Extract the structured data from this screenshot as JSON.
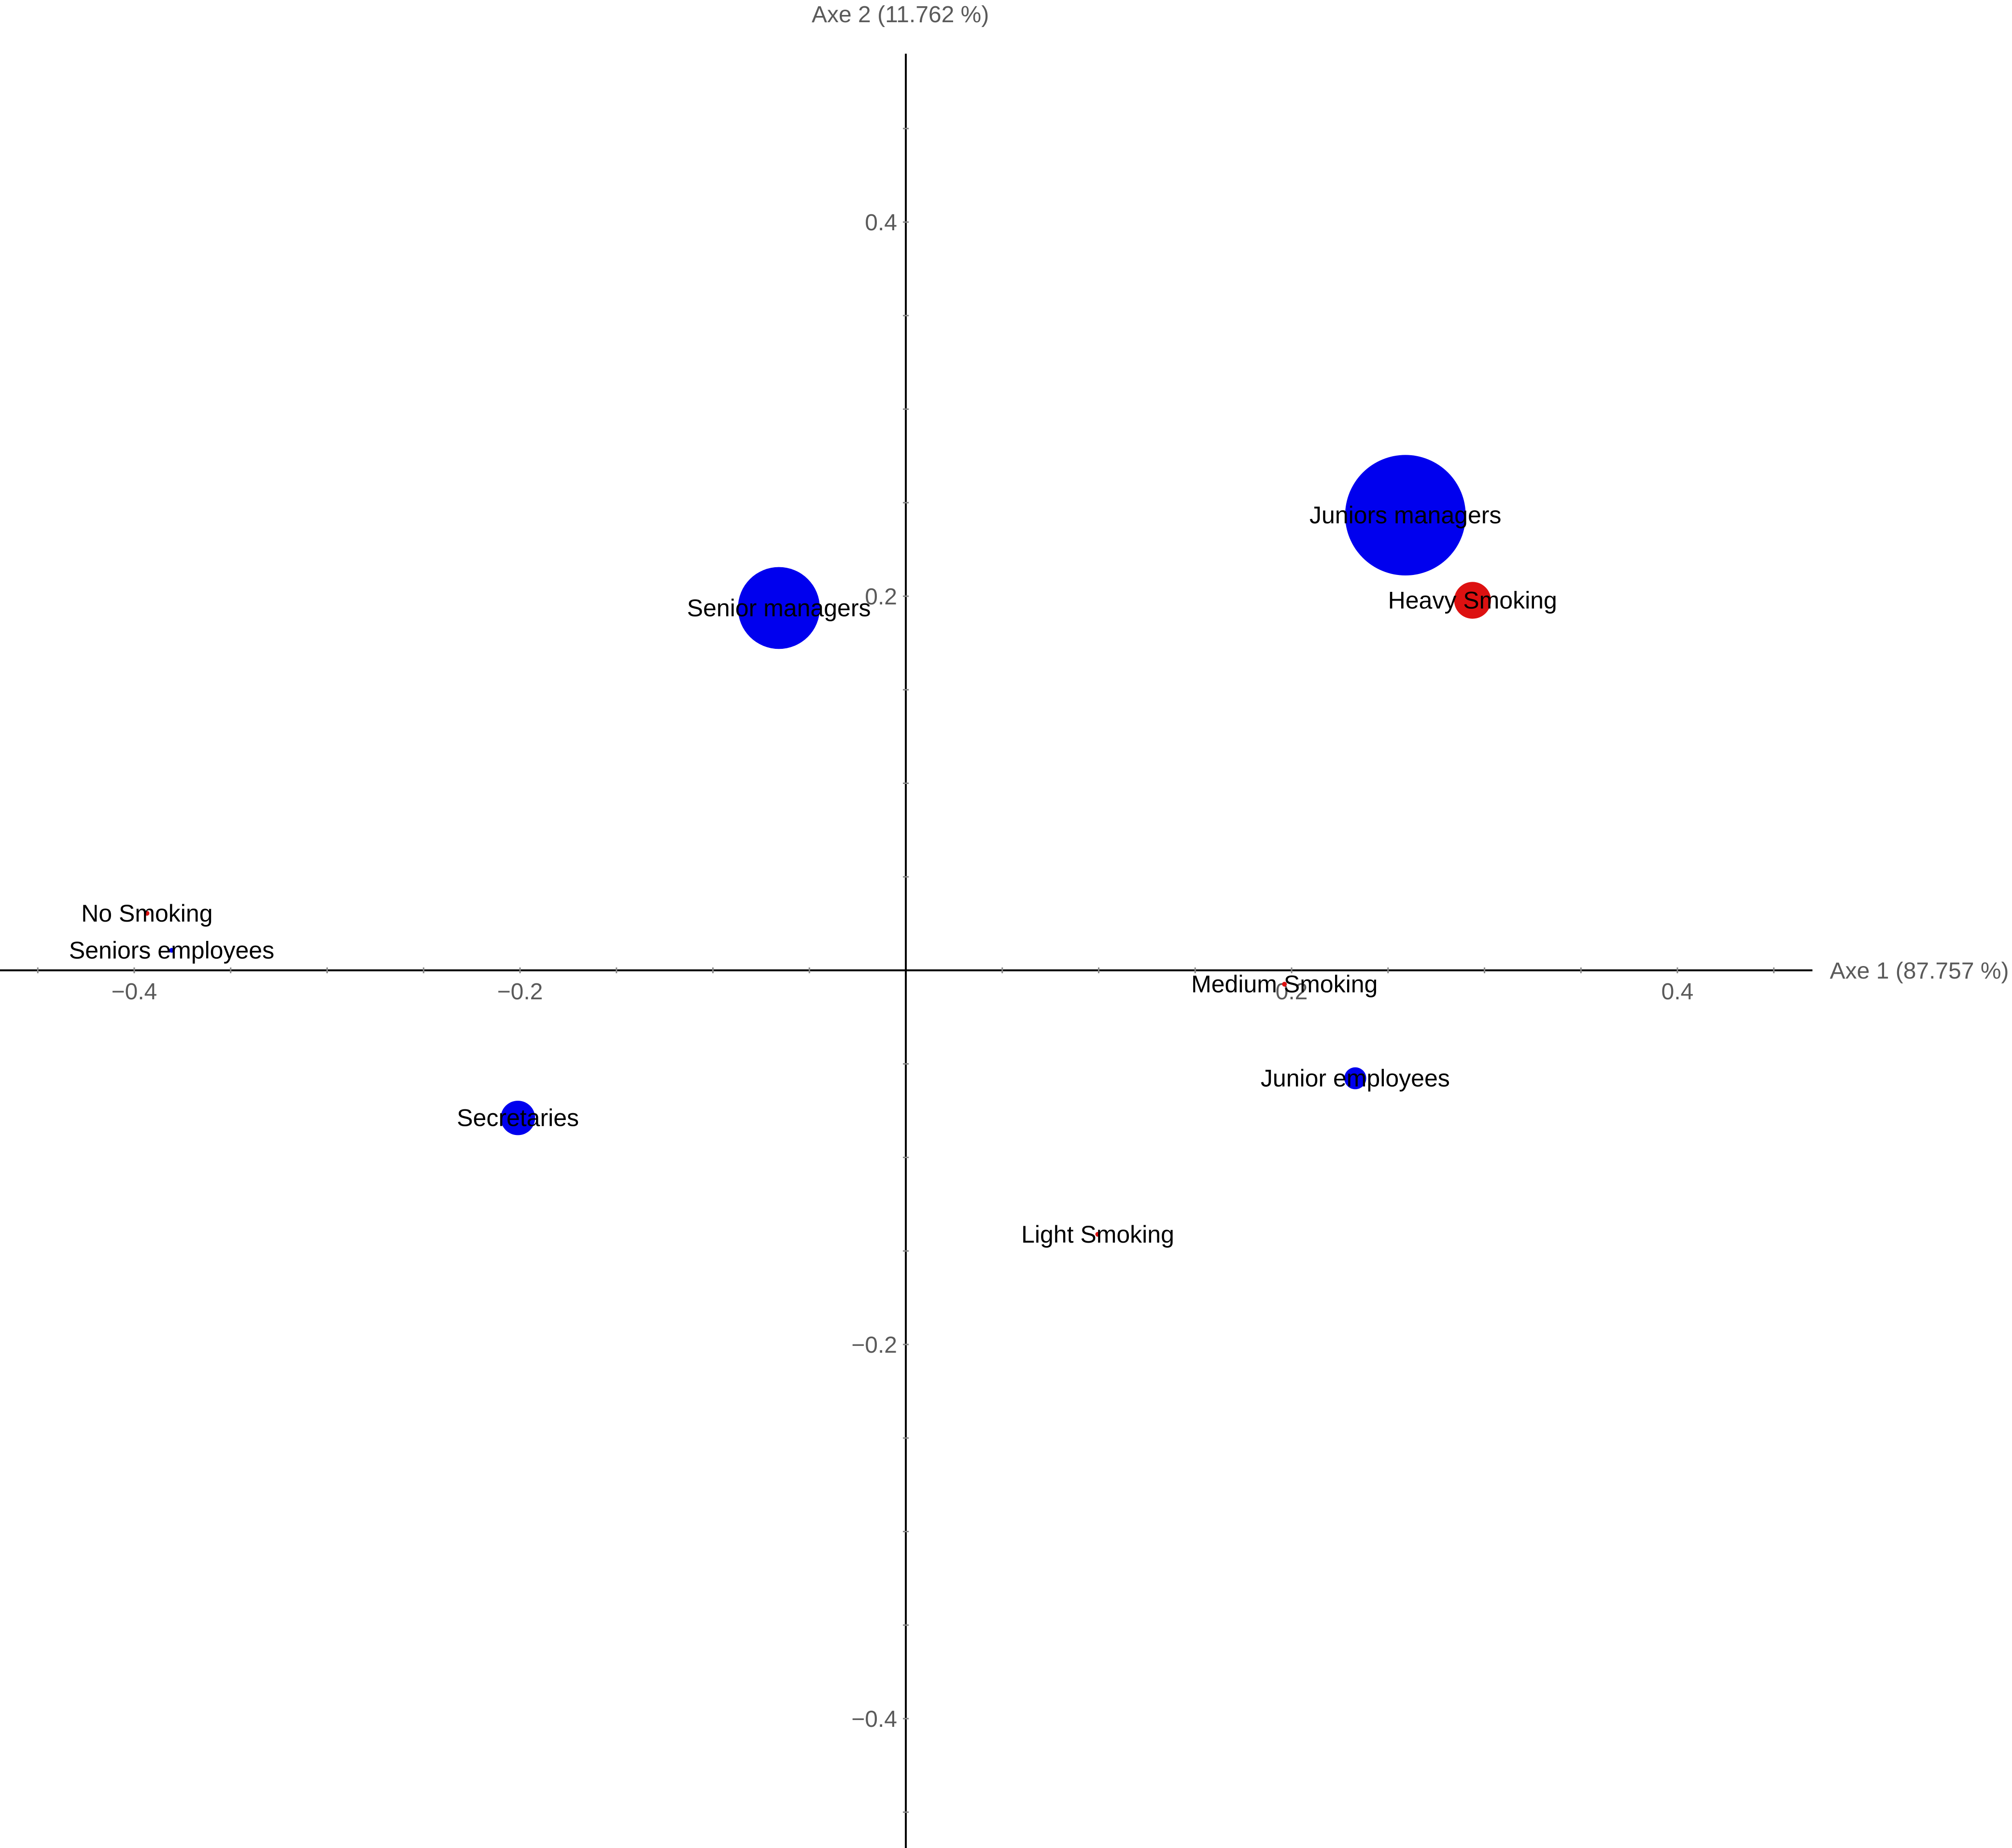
{
  "chart_data": {
    "type": "scatter",
    "title": "",
    "xlabel": "Axe 1 (87.757 %)",
    "ylabel": "Axe 2 (11.762 %)",
    "xlim": [
      -0.47,
      0.47
    ],
    "ylim": [
      -0.47,
      0.49
    ],
    "grid": false,
    "x_ticks": [
      {
        "value": -0.4,
        "label": "−0.4"
      },
      {
        "value": -0.2,
        "label": "−0.2"
      },
      {
        "value": 0.2,
        "label": "0.2"
      },
      {
        "value": 0.4,
        "label": "0.4"
      }
    ],
    "y_ticks": [
      {
        "value": 0.4,
        "label": "0.4"
      },
      {
        "value": 0.2,
        "label": "0.2"
      },
      {
        "value": -0.2,
        "label": "−0.2"
      },
      {
        "value": -0.4,
        "label": "−0.4"
      }
    ],
    "series": [
      {
        "color": "#0000ee",
        "points": [
          {
            "label": "Senior managers",
            "x": -0.0658,
            "y": 0.1937,
            "size": 0.0203
          },
          {
            "label": "Juniors managers",
            "x": 0.259,
            "y": 0.2433,
            "size": 0.0458
          },
          {
            "label": "Seniors employees",
            "x": -0.3806,
            "y": 0.0107,
            "size": 0.0
          },
          {
            "label": "Junior employees",
            "x": 0.233,
            "y": -0.0577,
            "size": 0.001
          },
          {
            "label": "Secretaries",
            "x": -0.2011,
            "y": -0.0789,
            "size": 0.003
          }
        ]
      },
      {
        "color": "#dd1111",
        "points": [
          {
            "label": "No Smoking",
            "x": -0.3934,
            "y": 0.0305,
            "size": 0.0
          },
          {
            "label": "Light Smoking",
            "x": 0.0995,
            "y": -0.1411,
            "size": 0.0
          },
          {
            "label": "Medium Smoking",
            "x": 0.1963,
            "y": -0.0074,
            "size": 0.0
          },
          {
            "label": "Heavy Smoking",
            "x": 0.2938,
            "y": 0.1978,
            "size": 0.0035
          }
        ]
      }
    ]
  }
}
